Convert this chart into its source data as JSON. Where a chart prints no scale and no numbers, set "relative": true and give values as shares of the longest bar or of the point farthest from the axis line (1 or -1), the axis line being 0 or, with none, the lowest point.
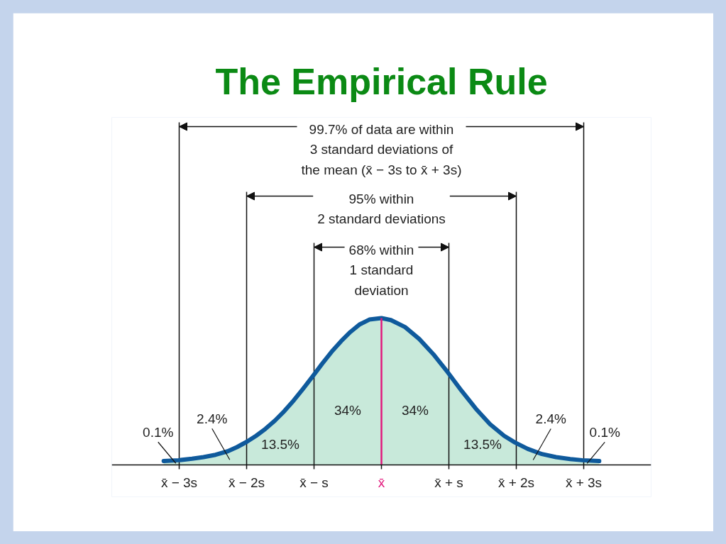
{
  "chart_data": {
    "type": "area",
    "title": "The Empirical Rule",
    "relative": true,
    "x": [
      -3.23,
      -3.01,
      -2.81,
      -2.64,
      -2.46,
      -2.28,
      -2.14,
      -2.0,
      -1.86,
      -1.72,
      -1.58,
      -1.44,
      -1.3,
      -1.16,
      -1.01,
      -0.88,
      -0.74,
      -0.6,
      -0.46,
      -0.32,
      -0.18,
      0,
      0.14,
      0.35,
      0.56,
      0.77,
      0.98,
      1.19,
      1.4,
      1.61,
      1.82,
      1.98,
      2.17,
      2.38,
      2.59,
      2.8,
      2.98,
      3.23
    ],
    "series": [
      {
        "color": "#c8e9da",
        "values": [
          0.027,
          0.032,
          0.042,
          0.053,
          0.069,
          0.093,
          0.122,
          0.157,
          0.198,
          0.246,
          0.302,
          0.367,
          0.44,
          0.52,
          0.609,
          0.689,
          0.77,
          0.842,
          0.906,
          0.958,
          0.99,
          1,
          0.987,
          0.939,
          0.858,
          0.754,
          0.633,
          0.504,
          0.383,
          0.278,
          0.198,
          0.153,
          0.109,
          0.074,
          0.053,
          0.04,
          0.032,
          0.026
        ]
      }
    ],
    "xlim": [
      -4,
      4
    ],
    "xticks": [
      {
        "value": -3,
        "label": "x̄ − 3s"
      },
      {
        "value": -2,
        "label": "x̄ − 2s"
      },
      {
        "value": -1,
        "label": "x̄ − s"
      },
      {
        "value": 0,
        "label": null
      },
      {
        "value": 1,
        "label": "x̄ + s"
      },
      {
        "value": 2,
        "label": "x̄ + 2s"
      },
      {
        "value": 3,
        "label": "x̄ + 3s"
      }
    ],
    "ref_lines": [
      {
        "axis": "x",
        "value": -3
      },
      {
        "axis": "x",
        "value": 3
      },
      {
        "axis": "x",
        "value": -2
      },
      {
        "axis": "x",
        "value": 2
      },
      {
        "axis": "x",
        "value": -1
      },
      {
        "axis": "x",
        "value": 1
      },
      {
        "axis": "x",
        "value": 0,
        "label": "x̄",
        "color": "#e2187c"
      }
    ],
    "annotations": [
      "99.7% of data are within\n3 standard deviations of\nthe mean (x̄ − 3s to x̄ + 3s)",
      "95% within\n2 standard deviations",
      "68% within\n1 standard\ndeviation",
      "0.1%",
      "2.4%",
      "13.5%",
      "34%",
      "34%",
      "13.5%",
      "2.4%",
      "0.1%"
    ]
  }
}
